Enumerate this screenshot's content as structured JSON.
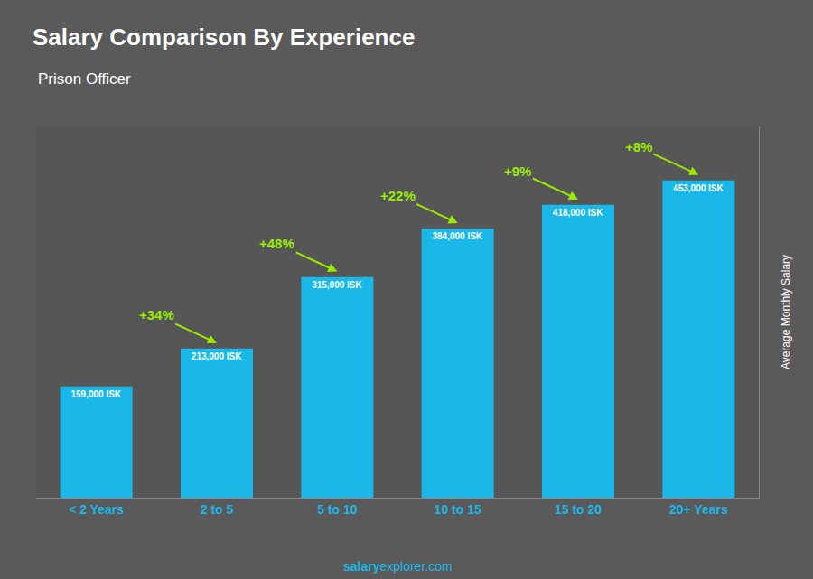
{
  "chart_data": {
    "type": "bar",
    "title": "Salary Comparison By Experience",
    "subtitle": "Prison Officer",
    "categories": [
      "< 2 Years",
      "2 to 5",
      "5 to 10",
      "10 to 15",
      "15 to 20",
      "20+ Years"
    ],
    "values": [
      159000,
      213000,
      315000,
      384000,
      418000,
      453000
    ],
    "value_labels": [
      "159,000 ISK",
      "213,000 ISK",
      "315,000 ISK",
      "384,000 ISK",
      "418,000 ISK",
      "453,000 ISK"
    ],
    "data_labels": true,
    "color": "#1ab8e8",
    "ylabel": "Average Monthly Salary",
    "ylim": [
      0,
      530000
    ],
    "tick_labels": "x",
    "grid": false,
    "annotations": [
      "+34%",
      "+48%",
      "+22%",
      "+9%",
      "+8%"
    ],
    "watermark": [
      "salary",
      "explorer.com"
    ]
  }
}
